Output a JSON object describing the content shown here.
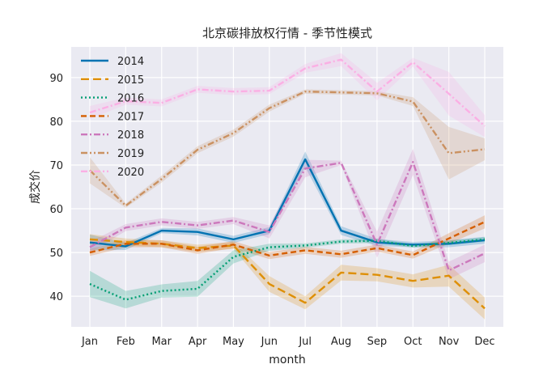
{
  "chart_data": {
    "type": "line",
    "title": "北京碳排放权行情 - 季节性模式",
    "xlabel": "month",
    "ylabel": "成交价",
    "categories": [
      "Jan",
      "Feb",
      "Mar",
      "Apr",
      "May",
      "Jun",
      "Jul",
      "Aug",
      "Sep",
      "Oct",
      "Nov",
      "Dec"
    ],
    "ylim": [
      33,
      97
    ],
    "yticks": [
      40,
      50,
      60,
      70,
      80,
      90
    ],
    "grid": true,
    "legend_position": "top-left",
    "colors": {
      "background": "#eaeaf2",
      "grid": "#ffffff"
    },
    "series": [
      {
        "name": "2014",
        "color": "#0173b2",
        "dash": "solid",
        "values": [
          52.3,
          51.4,
          55.0,
          54.7,
          53.0,
          55.0,
          71.3,
          55.0,
          52.3,
          51.8,
          52.0,
          52.8
        ],
        "band": [
          1.8,
          0.8,
          0.6,
          0.8,
          0.8,
          0.8,
          1.8,
          1.0,
          0.8,
          0.6,
          0.8,
          0.8
        ]
      },
      {
        "name": "2015",
        "color": "#de8f05",
        "dash": "long",
        "values": [
          53.0,
          52.4,
          52.0,
          51.0,
          51.6,
          42.8,
          38.5,
          45.4,
          44.9,
          43.5,
          44.7,
          37.2
        ],
        "band": [
          1.2,
          0.8,
          0.8,
          0.8,
          0.8,
          1.8,
          1.5,
          1.8,
          1.5,
          1.5,
          2.5,
          2.5
        ]
      },
      {
        "name": "2016",
        "color": "#029e73",
        "dash": "dot",
        "values": [
          42.8,
          39.2,
          41.2,
          41.7,
          49.0,
          51.2,
          51.6,
          52.5,
          52.7,
          51.5,
          52.2,
          53.0
        ],
        "band": [
          3.0,
          2.0,
          1.5,
          1.8,
          1.5,
          0.8,
          0.5,
          0.5,
          0.5,
          0.4,
          0.5,
          0.5
        ]
      },
      {
        "name": "2017",
        "color": "#d55e00",
        "dash": "dash",
        "values": [
          50.0,
          52.0,
          52.0,
          50.5,
          51.8,
          49.3,
          50.5,
          49.6,
          51.0,
          49.4,
          53.2,
          57.0
        ],
        "band": [
          0.8,
          0.8,
          0.8,
          0.8,
          0.8,
          0.8,
          0.8,
          0.8,
          0.8,
          0.8,
          1.2,
          1.5
        ]
      },
      {
        "name": "2018",
        "color": "#cc78bc",
        "dash": "dashdot",
        "values": [
          51.2,
          55.7,
          57.0,
          56.2,
          57.3,
          54.7,
          69.2,
          70.5,
          51.8,
          70.7,
          45.9,
          49.8
        ],
        "band": [
          1.2,
          0.8,
          0.8,
          0.8,
          0.8,
          1.5,
          2.0,
          0.5,
          3.0,
          3.0,
          2.0,
          2.0
        ]
      },
      {
        "name": "2019",
        "color": "#ca9161",
        "dash": "dashdotdot",
        "values": [
          68.8,
          60.7,
          66.8,
          73.5,
          77.3,
          83.0,
          86.8,
          86.6,
          86.4,
          84.5,
          72.7,
          73.6
        ],
        "band": [
          3.0,
          0.5,
          0.8,
          0.8,
          0.8,
          0.8,
          0.5,
          0.5,
          0.5,
          1.0,
          6.0,
          2.5
        ]
      },
      {
        "name": "2020",
        "color": "#fbafe4",
        "dash": "dashdot",
        "values": [
          82.0,
          84.6,
          84.2,
          87.3,
          86.8,
          87.0,
          92.1,
          94.1,
          86.8,
          93.5,
          86.3,
          78.9
        ],
        "band": [
          1.5,
          0.8,
          0.8,
          0.8,
          0.8,
          0.8,
          1.0,
          1.5,
          2.0,
          1.0,
          5.0,
          2.5
        ]
      }
    ]
  }
}
